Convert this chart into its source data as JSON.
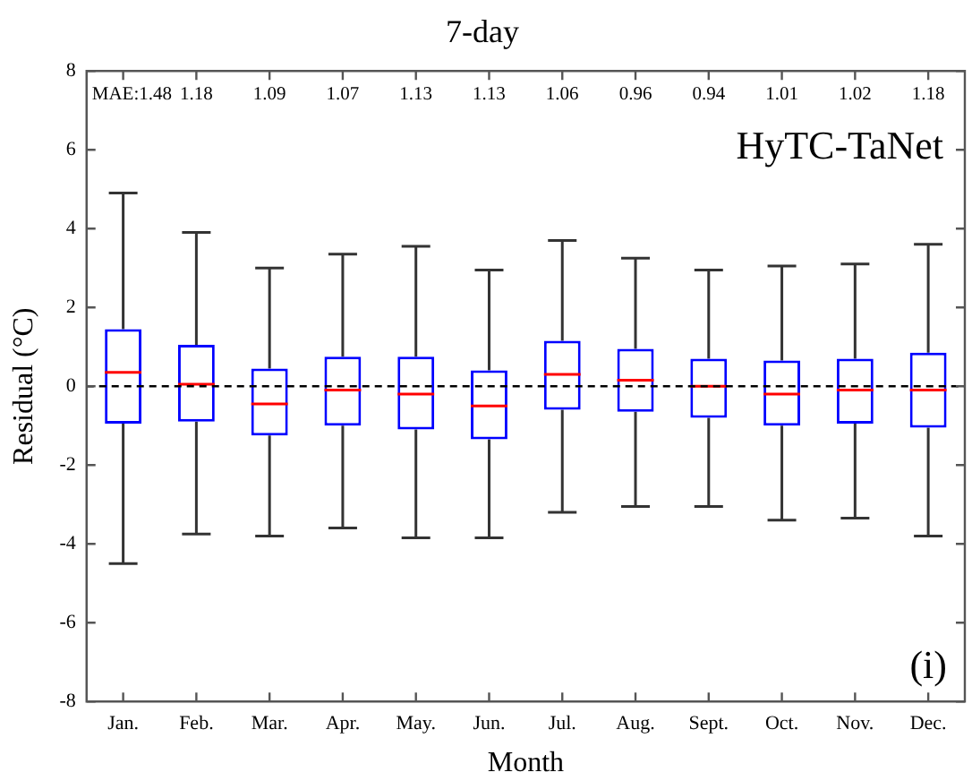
{
  "chart_data": {
    "type": "box",
    "title": "7-day",
    "xlabel": "Month",
    "ylabel": "Residual (°C)",
    "categories": [
      "Jan.",
      "Feb.",
      "Mar.",
      "Apr.",
      "May.",
      "Jun.",
      "Jul.",
      "Aug.",
      "Sept.",
      "Oct.",
      "Nov.",
      "Dec."
    ],
    "color": "#0000ff",
    "boxes": [
      {
        "low": -4.5,
        "q1": -0.95,
        "median": 0.35,
        "q3": 1.45,
        "high": 4.9
      },
      {
        "low": -3.75,
        "q1": -0.9,
        "median": 0.05,
        "q3": 1.05,
        "high": 3.9
      },
      {
        "low": -3.8,
        "q1": -1.25,
        "median": -0.45,
        "q3": 0.45,
        "high": 3.0
      },
      {
        "low": -3.6,
        "q1": -1.0,
        "median": -0.1,
        "q3": 0.75,
        "high": 3.35
      },
      {
        "low": -3.85,
        "q1": -1.1,
        "median": -0.2,
        "q3": 0.75,
        "high": 3.55
      },
      {
        "low": -3.85,
        "q1": -1.35,
        "median": -0.5,
        "q3": 0.4,
        "high": 2.95
      },
      {
        "low": -3.2,
        "q1": -0.6,
        "median": 0.3,
        "q3": 1.15,
        "high": 3.7
      },
      {
        "low": -3.05,
        "q1": -0.65,
        "median": 0.15,
        "q3": 0.95,
        "high": 3.25
      },
      {
        "low": -3.05,
        "q1": -0.8,
        "median": 0.0,
        "q3": 0.7,
        "high": 2.95
      },
      {
        "low": -3.4,
        "q1": -1.0,
        "median": -0.2,
        "q3": 0.65,
        "high": 3.05
      },
      {
        "low": -3.35,
        "q1": -0.95,
        "median": -0.1,
        "q3": 0.7,
        "high": 3.1
      },
      {
        "low": -3.8,
        "q1": -1.05,
        "median": -0.1,
        "q3": 0.85,
        "high": 3.6
      }
    ],
    "ylim": [
      -8,
      8
    ],
    "yticks": [
      -8,
      -6,
      -4,
      -2,
      0,
      2,
      4,
      6,
      8
    ],
    "grid": false,
    "legend": false,
    "ref_lines": [
      {
        "axis": "y",
        "value": 0,
        "color": "#000000",
        "line_style": "dashed"
      }
    ],
    "annotations": [
      "MAE:1.48",
      "1.18",
      "1.09",
      "1.07",
      "1.13",
      "1.13",
      "1.06",
      "0.96",
      "0.94",
      "1.01",
      "1.02",
      "1.18",
      "HyTC-TaNet",
      "(i)"
    ]
  }
}
